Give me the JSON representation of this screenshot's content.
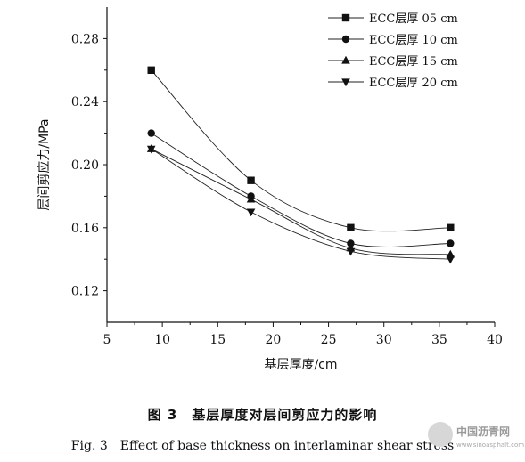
{
  "chart_data": {
    "type": "scatter",
    "title": "",
    "xlabel": "基层厚度/cm",
    "ylabel": "层间剪应力/MPa",
    "xlim": [
      5,
      40
    ],
    "ylim": [
      0.1,
      0.3
    ],
    "xticks": [
      "5",
      "10",
      "15",
      "20",
      "25",
      "30",
      "35",
      "40"
    ],
    "yticks": [
      "0.12",
      "0.16",
      "0.20",
      "0.24",
      "0.28"
    ],
    "x": [
      9,
      18,
      27,
      36
    ],
    "legend_position": "top-right",
    "grid": false,
    "series": [
      {
        "name": "ECC层厚 05 cm",
        "marker": "square",
        "values": [
          0.26,
          0.19,
          0.16,
          0.16
        ]
      },
      {
        "name": "ECC层厚 10 cm",
        "marker": "circle",
        "values": [
          0.22,
          0.18,
          0.15,
          0.15
        ]
      },
      {
        "name": "ECC层厚 15 cm",
        "marker": "triangle-up",
        "values": [
          0.21,
          0.178,
          0.147,
          0.143
        ]
      },
      {
        "name": "ECC层厚 20 cm",
        "marker": "triangle-down",
        "values": [
          0.21,
          0.17,
          0.145,
          0.14
        ]
      }
    ]
  },
  "caption": {
    "cn": "图 3　基层厚度对层间剪应力的影响",
    "en": "Fig. 3　Effect of base thickness on interlaminar shear stress"
  },
  "watermark": {
    "text": "中国沥青网",
    "url_text": "www.sinoasphalt.com"
  }
}
